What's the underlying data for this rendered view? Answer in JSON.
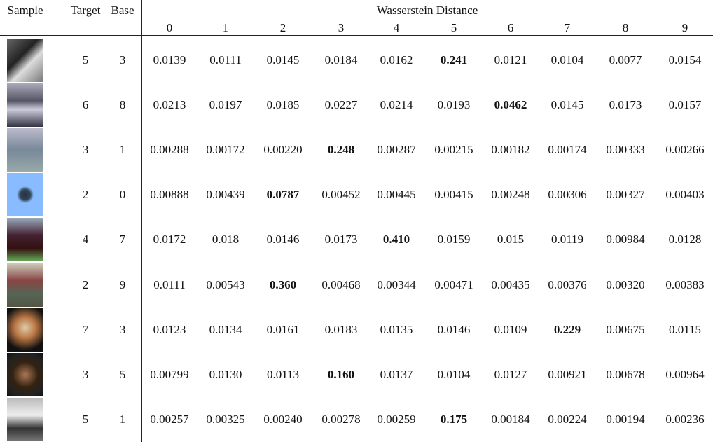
{
  "table": {
    "header": {
      "sample": "Sample",
      "target": "Target",
      "base": "Base",
      "group": "Wasserstein Distance",
      "columns": [
        "0",
        "1",
        "2",
        "3",
        "4",
        "5",
        "6",
        "7",
        "8",
        "9"
      ]
    },
    "rows": [
      {
        "target": 5,
        "base": 3,
        "values": [
          "0.0139",
          "0.0111",
          "0.0145",
          "0.0184",
          "0.0162",
          "0.241",
          "0.0121",
          "0.0104",
          "0.0077",
          "0.0154"
        ],
        "bold": 5
      },
      {
        "target": 6,
        "base": 8,
        "values": [
          "0.0213",
          "0.0197",
          "0.0185",
          "0.0227",
          "0.0214",
          "0.0193",
          "0.0462",
          "0.0145",
          "0.0173",
          "0.0157"
        ],
        "bold": 6
      },
      {
        "target": 3,
        "base": 1,
        "values": [
          "0.00288",
          "0.00172",
          "0.00220",
          "0.248",
          "0.00287",
          "0.00215",
          "0.00182",
          "0.00174",
          "0.00333",
          "0.00266"
        ],
        "bold": 3
      },
      {
        "target": 2,
        "base": 0,
        "values": [
          "0.00888",
          "0.00439",
          "0.0787",
          "0.00452",
          "0.00445",
          "0.00415",
          "0.00248",
          "0.00306",
          "0.00327",
          "0.00403"
        ],
        "bold": 2
      },
      {
        "target": 4,
        "base": 7,
        "values": [
          "0.0172",
          "0.018",
          "0.0146",
          "0.0173",
          "0.410",
          "0.0159",
          "0.015",
          "0.0119",
          "0.00984",
          "0.0128"
        ],
        "bold": 4
      },
      {
        "target": 2,
        "base": 9,
        "values": [
          "0.0111",
          "0.00543",
          "0.360",
          "0.00468",
          "0.00344",
          "0.00471",
          "0.00435",
          "0.00376",
          "0.00320",
          "0.00383"
        ],
        "bold": 2
      },
      {
        "target": 7,
        "base": 3,
        "values": [
          "0.0123",
          "0.0134",
          "0.0161",
          "0.0183",
          "0.0135",
          "0.0146",
          "0.0109",
          "0.229",
          "0.00675",
          "0.0115"
        ],
        "bold": 7
      },
      {
        "target": 3,
        "base": 5,
        "values": [
          "0.00799",
          "0.0130",
          "0.0113",
          "0.160",
          "0.0137",
          "0.0104",
          "0.0127",
          "0.00921",
          "0.00678",
          "0.00964"
        ],
        "bold": 3
      },
      {
        "target": 5,
        "base": 1,
        "values": [
          "0.00257",
          "0.00325",
          "0.00240",
          "0.00278",
          "0.00259",
          "0.175",
          "0.00184",
          "0.00224",
          "0.00194",
          "0.00236"
        ],
        "bold": 5
      }
    ]
  }
}
